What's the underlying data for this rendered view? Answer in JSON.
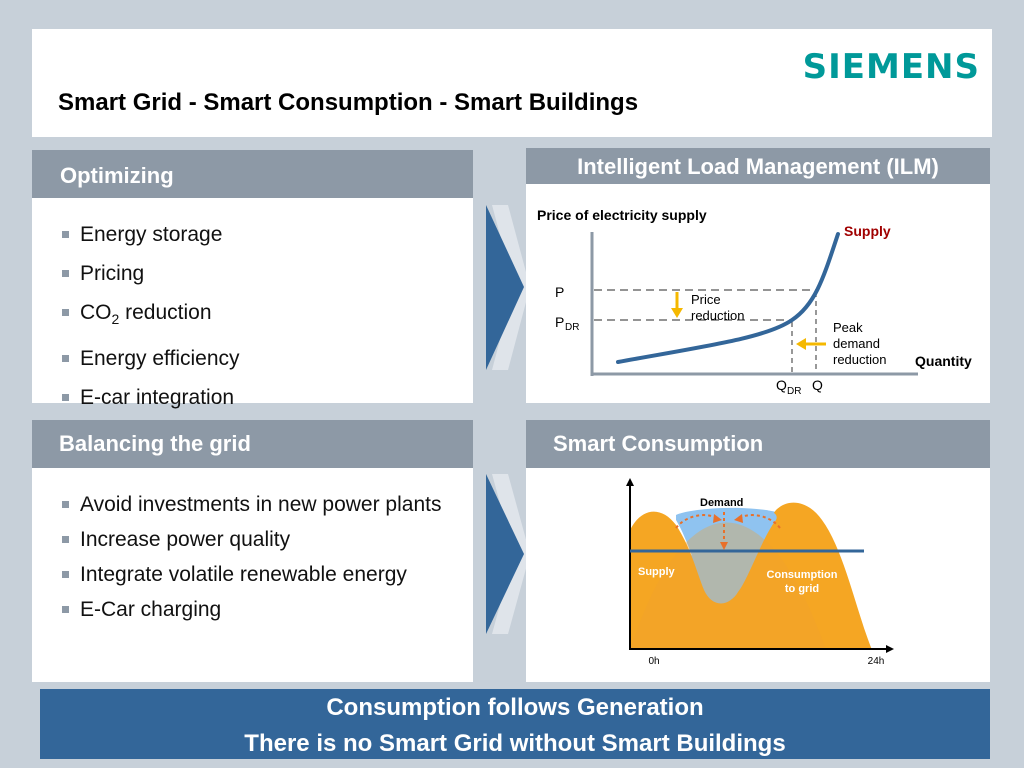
{
  "header": {
    "logo": "SIEMENS",
    "title": "Smart Grid - Smart Consumption - Smart Buildings"
  },
  "optimizing": {
    "title": "Optimizing",
    "items": [
      {
        "text": "Energy storage"
      },
      {
        "text": "Pricing"
      },
      {
        "text_pre": "CO",
        "sub": "2",
        "text_post": " reduction"
      },
      {
        "text": "Energy efficiency"
      },
      {
        "text": "E-car integration"
      }
    ]
  },
  "balancing": {
    "title": "Balancing the grid",
    "items": [
      "Avoid investments in new power plants",
      "Increase power quality",
      "Integrate volatile renewable energy",
      "E-Car charging"
    ]
  },
  "ilm": {
    "title": "Intelligent Load Management (ILM)",
    "y_label": "Price of electricity supply",
    "x_label": "Quantity",
    "supply_label": "Supply",
    "p_label": "P",
    "pdr_main": "P",
    "pdr_sub": "DR",
    "q_label": "Q",
    "qdr_main": "Q",
    "qdr_sub": "DR",
    "price_reduction_1": "Price",
    "price_reduction_2": "reduction",
    "peak_1": "Peak",
    "peak_2": "demand",
    "peak_3": "reduction",
    "colors": {
      "curve": "#336699",
      "arrow": "#f5b800",
      "supply_text": "#a00000"
    }
  },
  "smart_consumption": {
    "title": "Smart Consumption",
    "demand_label": "Demand",
    "supply_label": "Supply",
    "consumption_1": "Consumption",
    "consumption_2": "to grid",
    "x_start": "0h",
    "x_end": "24h",
    "colors": {
      "supply": "#f5a623",
      "demand": "#8fc3f0",
      "line": "#336699"
    }
  },
  "footer": {
    "line1": "Consumption follows Generation",
    "line2": "There is no Smart Grid without Smart Buildings"
  }
}
